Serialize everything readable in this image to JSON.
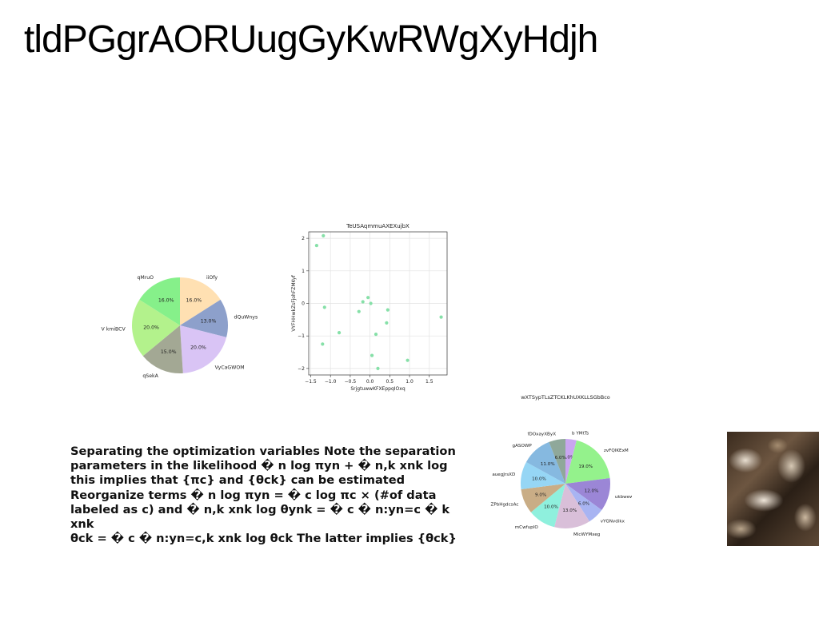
{
  "page": {
    "title": "tldPGgrAORUugGyKwRWgXyHdjh",
    "body_text": "Separating the optimization variables Note the separation\nparameters in the likelihood � n log πyn + � n,k xnk log\nthis implies that {πc} and {θck} can be estimated\nReorganize terms � n log πyn = � c log πc × (#of data\nlabeled as c) and � n,k xnk log θynk = � c � n:yn=c � k xnk\nθck = � c � n:yn=c,k xnk log θck The latter implies {θck}"
  },
  "chart_data": [
    {
      "type": "pie",
      "title": "",
      "labels": [
        "iiOfy",
        "dQuWnys",
        "VyCaGWOM",
        "qSekA",
        "V kmiBCV",
        "qMruO"
      ],
      "values": [
        16.0,
        13.0,
        20.0,
        15.0,
        20.0,
        16.0
      ],
      "pct_labels": [
        "16.0%",
        "13.0%",
        "20.0%",
        "15.0%",
        "20.0%",
        "16.0%"
      ],
      "colors": [
        "#ffe0b2",
        "#8da0cb",
        "#d9c4f5",
        "#a3a894",
        "#b3f28c",
        "#86f08a"
      ]
    },
    {
      "type": "scatter",
      "title": "TeUSAqmmuAXEXujbX",
      "xlabel": "SrjgtuwwKFXEppqIOxq",
      "ylabel": "VYFHHwkZsFjohFZMKyf",
      "xlim": [
        -1.55,
        1.95
      ],
      "ylim": [
        -2.2,
        2.2
      ],
      "xticks": [
        -1.5,
        -1.0,
        -0.5,
        0.0,
        0.5,
        1.0,
        1.5
      ],
      "xtick_labels": [
        "−1.5",
        "−1.0",
        "−0.5",
        "0.0",
        "0.5",
        "1.0",
        "1.5"
      ],
      "yticks": [
        -2,
        -1,
        0,
        1,
        2
      ],
      "ytick_labels": [
        "−2",
        "−1",
        "0",
        "1",
        "2"
      ],
      "grid": true,
      "color": "#86e0a8",
      "points": [
        {
          "x": -1.35,
          "y": 1.78
        },
        {
          "x": -1.18,
          "y": 2.08
        },
        {
          "x": -1.2,
          "y": -1.25
        },
        {
          "x": -1.15,
          "y": -0.12
        },
        {
          "x": -0.78,
          "y": -0.9
        },
        {
          "x": -0.28,
          "y": -0.25
        },
        {
          "x": -0.18,
          "y": 0.05
        },
        {
          "x": -0.05,
          "y": 0.18
        },
        {
          "x": 0.02,
          "y": 0.0
        },
        {
          "x": 0.05,
          "y": -1.6
        },
        {
          "x": 0.15,
          "y": -0.95
        },
        {
          "x": 0.2,
          "y": -2.0
        },
        {
          "x": 0.42,
          "y": -0.6
        },
        {
          "x": 0.45,
          "y": -0.2
        },
        {
          "x": 0.95,
          "y": -1.75
        },
        {
          "x": 1.8,
          "y": -0.42
        }
      ]
    },
    {
      "type": "pie",
      "title": "wXTSypTLsZTCKLKhUXKLLSGbBco",
      "labels": [
        "b YMtTs",
        "zvFQIKExM",
        "ukbwewS",
        "vYGNvdikx",
        "MlcWYMxeg",
        "mCwfupIO",
        "ZPbHgdcsAc",
        "auegJrsXD",
        "gASOWP",
        "fDOxayXByX"
      ],
      "values": [
        4.0,
        19.0,
        12.0,
        6.0,
        13.0,
        10.0,
        9.0,
        10.0,
        11.0,
        6.0
      ],
      "pct_labels": [
        "4.0%",
        "19.0%",
        "12.0%",
        "6.0%",
        "13.0%",
        "10.0%",
        "9.0%",
        "10.0%",
        "11.0%",
        "6.0%"
      ],
      "colors": [
        "#c9a6f0",
        "#94f28c",
        "#9b86d6",
        "#a8b4f2",
        "#d9bfd9",
        "#8ff0dd",
        "#c9ad86",
        "#96d6f5",
        "#86b9e0",
        "#8fa89a"
      ]
    }
  ]
}
